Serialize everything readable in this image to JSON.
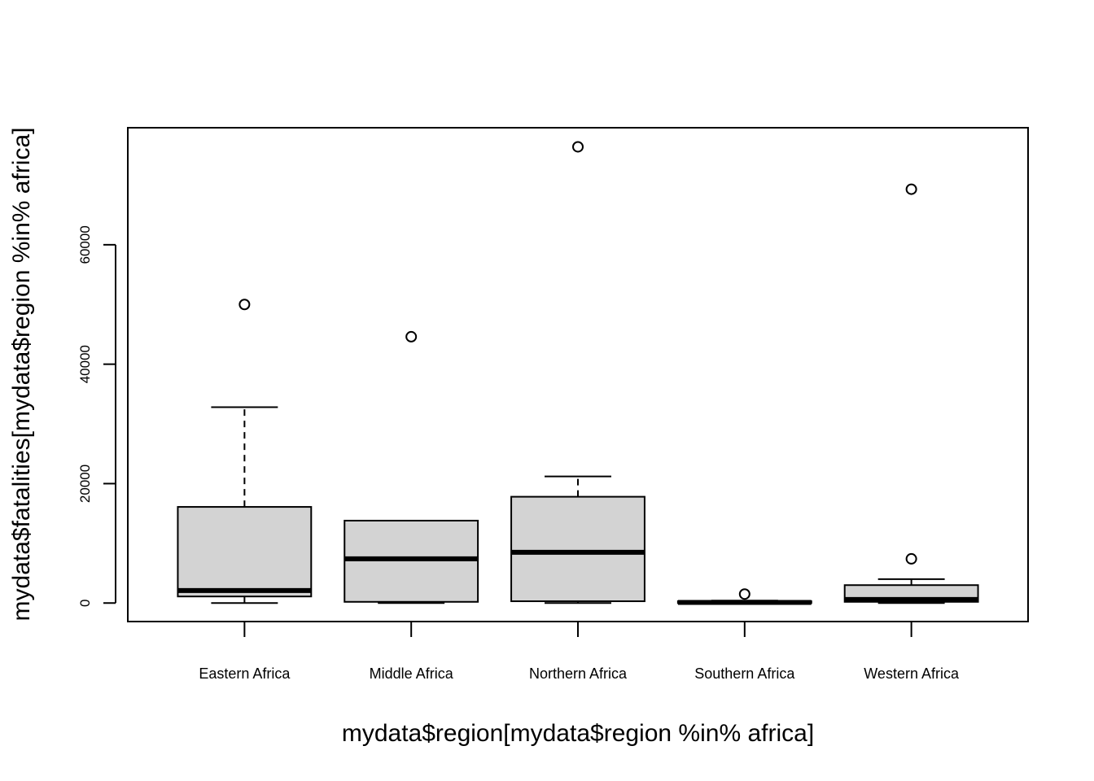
{
  "chart_data": {
    "type": "boxplot",
    "title": "",
    "xlabel": "mydata$region[mydata$region %in% africa]",
    "ylabel": "mydata$fatalities[mydata$region %in% africa]",
    "ylim": [
      -3100,
      79600
    ],
    "yticks": [
      0,
      20000,
      40000,
      60000
    ],
    "categories": [
      "Eastern Africa",
      "Middle Africa",
      "Northern Africa",
      "Southern Africa",
      "Western Africa"
    ],
    "boxes": [
      {
        "name": "Eastern Africa",
        "whisker_low": 0,
        "q1": 1100,
        "median": 2100,
        "q3": 16100,
        "whisker_high": 32800,
        "outliers": [
          50000
        ]
      },
      {
        "name": "Middle Africa",
        "whisker_low": 0,
        "q1": 200,
        "median": 7400,
        "q3": 13800,
        "whisker_high": 13800,
        "outliers": [
          44600
        ]
      },
      {
        "name": "Northern Africa",
        "whisker_low": 0,
        "q1": 300,
        "median": 8500,
        "q3": 17800,
        "whisker_high": 21200,
        "outliers": [
          76400
        ]
      },
      {
        "name": "Southern Africa",
        "whisker_low": 0,
        "q1": 0,
        "median": 100,
        "q3": 300,
        "whisker_high": 400,
        "outliers": [
          1500
        ]
      },
      {
        "name": "Western Africa",
        "whisker_low": 0,
        "q1": 200,
        "median": 600,
        "q3": 3000,
        "whisker_high": 4000,
        "outliers": [
          7400,
          69300
        ]
      }
    ],
    "box_fill": "#d3d3d3",
    "grid": false
  }
}
